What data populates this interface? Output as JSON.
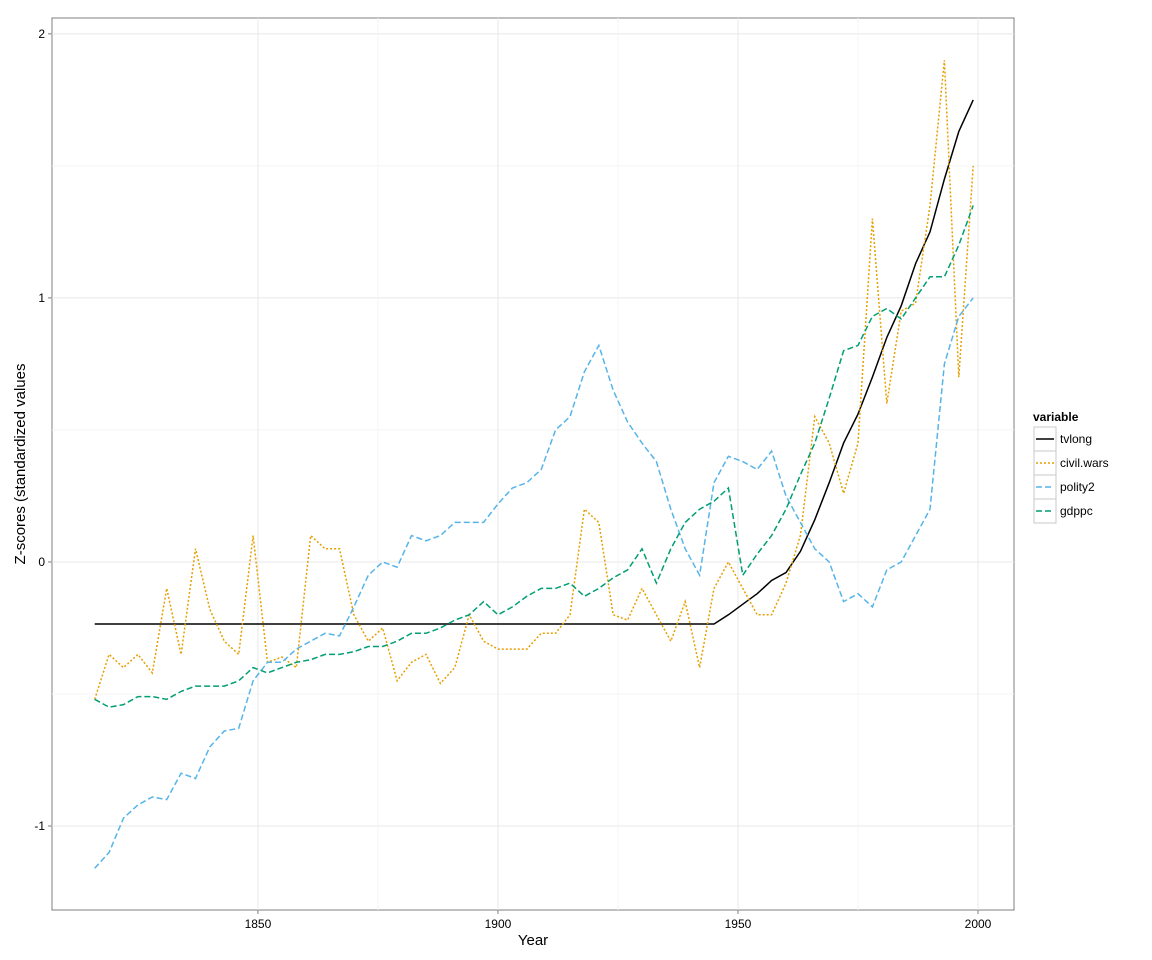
{
  "chart_data": {
    "type": "line",
    "x_label": "Year",
    "y_label": "Z-scores (standardized values",
    "legend_title": "variable",
    "legend_position": "right",
    "grid": true,
    "xlim": [
      1807.1,
      2007.5
    ],
    "ylim": [
      -1.318,
      2.06
    ],
    "xticks": [
      1850,
      1900,
      1950,
      2000
    ],
    "yticks": [
      -1,
      0,
      1,
      2
    ],
    "x": [
      1816,
      1819,
      1822,
      1825,
      1828,
      1831,
      1834,
      1837,
      1840,
      1843,
      1846,
      1849,
      1852,
      1855,
      1858,
      1861,
      1864,
      1867,
      1870,
      1873,
      1876,
      1879,
      1882,
      1885,
      1888,
      1891,
      1894,
      1897,
      1900,
      1903,
      1906,
      1909,
      1912,
      1915,
      1918,
      1921,
      1924,
      1927,
      1930,
      1933,
      1936,
      1939,
      1942,
      1945,
      1948,
      1951,
      1954,
      1957,
      1960,
      1963,
      1966,
      1969,
      1972,
      1975,
      1978,
      1981,
      1984,
      1987,
      1990,
      1993,
      1996,
      1999
    ],
    "series": [
      {
        "name": "tvlong",
        "color": "#000000",
        "dash": "solid",
        "values": [
          -0.235,
          -0.235,
          -0.235,
          -0.235,
          -0.235,
          -0.235,
          -0.235,
          -0.235,
          -0.235,
          -0.235,
          -0.235,
          -0.235,
          -0.235,
          -0.235,
          -0.235,
          -0.235,
          -0.235,
          -0.235,
          -0.235,
          -0.235,
          -0.235,
          -0.235,
          -0.235,
          -0.235,
          -0.235,
          -0.235,
          -0.235,
          -0.235,
          -0.235,
          -0.235,
          -0.235,
          -0.235,
          -0.235,
          -0.235,
          -0.235,
          -0.235,
          -0.235,
          -0.235,
          -0.235,
          -0.235,
          -0.235,
          -0.235,
          -0.235,
          -0.235,
          -0.2,
          -0.16,
          -0.12,
          -0.07,
          -0.04,
          0.04,
          0.16,
          0.3,
          0.45,
          0.56,
          0.7,
          0.85,
          0.97,
          1.13,
          1.25,
          1.45,
          1.63,
          1.75
        ]
      },
      {
        "name": "civil.wars",
        "color": "#E69F00",
        "dash": "dotted",
        "values": [
          -0.52,
          -0.35,
          -0.4,
          -0.35,
          -0.42,
          -0.1,
          -0.35,
          0.05,
          -0.18,
          -0.3,
          -0.35,
          0.1,
          -0.38,
          -0.36,
          -0.4,
          0.1,
          0.05,
          0.05,
          -0.2,
          -0.3,
          -0.25,
          -0.45,
          -0.38,
          -0.35,
          -0.46,
          -0.4,
          -0.2,
          -0.3,
          -0.33,
          -0.33,
          -0.33,
          -0.27,
          -0.27,
          -0.2,
          0.2,
          0.15,
          -0.2,
          -0.22,
          -0.1,
          -0.2,
          -0.3,
          -0.15,
          -0.4,
          -0.1,
          0.0,
          -0.1,
          -0.2,
          -0.2,
          -0.08,
          0.1,
          0.55,
          0.45,
          0.26,
          0.45,
          1.3,
          0.6,
          0.95,
          0.98,
          1.35,
          1.9,
          0.7,
          1.5
        ]
      },
      {
        "name": "polity2",
        "color": "#56B4E9",
        "dash": "dashed",
        "values": [
          -1.16,
          -1.1,
          -0.97,
          -0.92,
          -0.89,
          -0.9,
          -0.8,
          -0.82,
          -0.7,
          -0.64,
          -0.63,
          -0.45,
          -0.38,
          -0.38,
          -0.33,
          -0.3,
          -0.27,
          -0.28,
          -0.17,
          -0.05,
          0.0,
          -0.02,
          0.1,
          0.08,
          0.1,
          0.15,
          0.15,
          0.15,
          0.22,
          0.28,
          0.3,
          0.35,
          0.5,
          0.55,
          0.72,
          0.82,
          0.65,
          0.53,
          0.45,
          0.38,
          0.2,
          0.05,
          -0.05,
          0.3,
          0.4,
          0.38,
          0.35,
          0.42,
          0.25,
          0.15,
          0.05,
          0.0,
          -0.15,
          -0.12,
          -0.17,
          -0.03,
          0.0,
          0.1,
          0.2,
          0.75,
          0.93,
          1.0
        ]
      },
      {
        "name": "gdppc",
        "color": "#009E73",
        "dash": "dashed",
        "values": [
          -0.52,
          -0.55,
          -0.54,
          -0.51,
          -0.51,
          -0.52,
          -0.49,
          -0.47,
          -0.47,
          -0.47,
          -0.45,
          -0.4,
          -0.42,
          -0.4,
          -0.38,
          -0.37,
          -0.35,
          -0.35,
          -0.34,
          -0.32,
          -0.32,
          -0.3,
          -0.27,
          -0.27,
          -0.25,
          -0.22,
          -0.2,
          -0.15,
          -0.2,
          -0.17,
          -0.13,
          -0.1,
          -0.1,
          -0.08,
          -0.13,
          -0.1,
          -0.06,
          -0.03,
          0.05,
          -0.08,
          0.05,
          0.15,
          0.2,
          0.23,
          0.28,
          -0.05,
          0.03,
          0.1,
          0.2,
          0.33,
          0.45,
          0.62,
          0.8,
          0.82,
          0.93,
          0.96,
          0.92,
          1.0,
          1.08,
          1.08,
          1.2,
          1.35
        ]
      }
    ]
  }
}
